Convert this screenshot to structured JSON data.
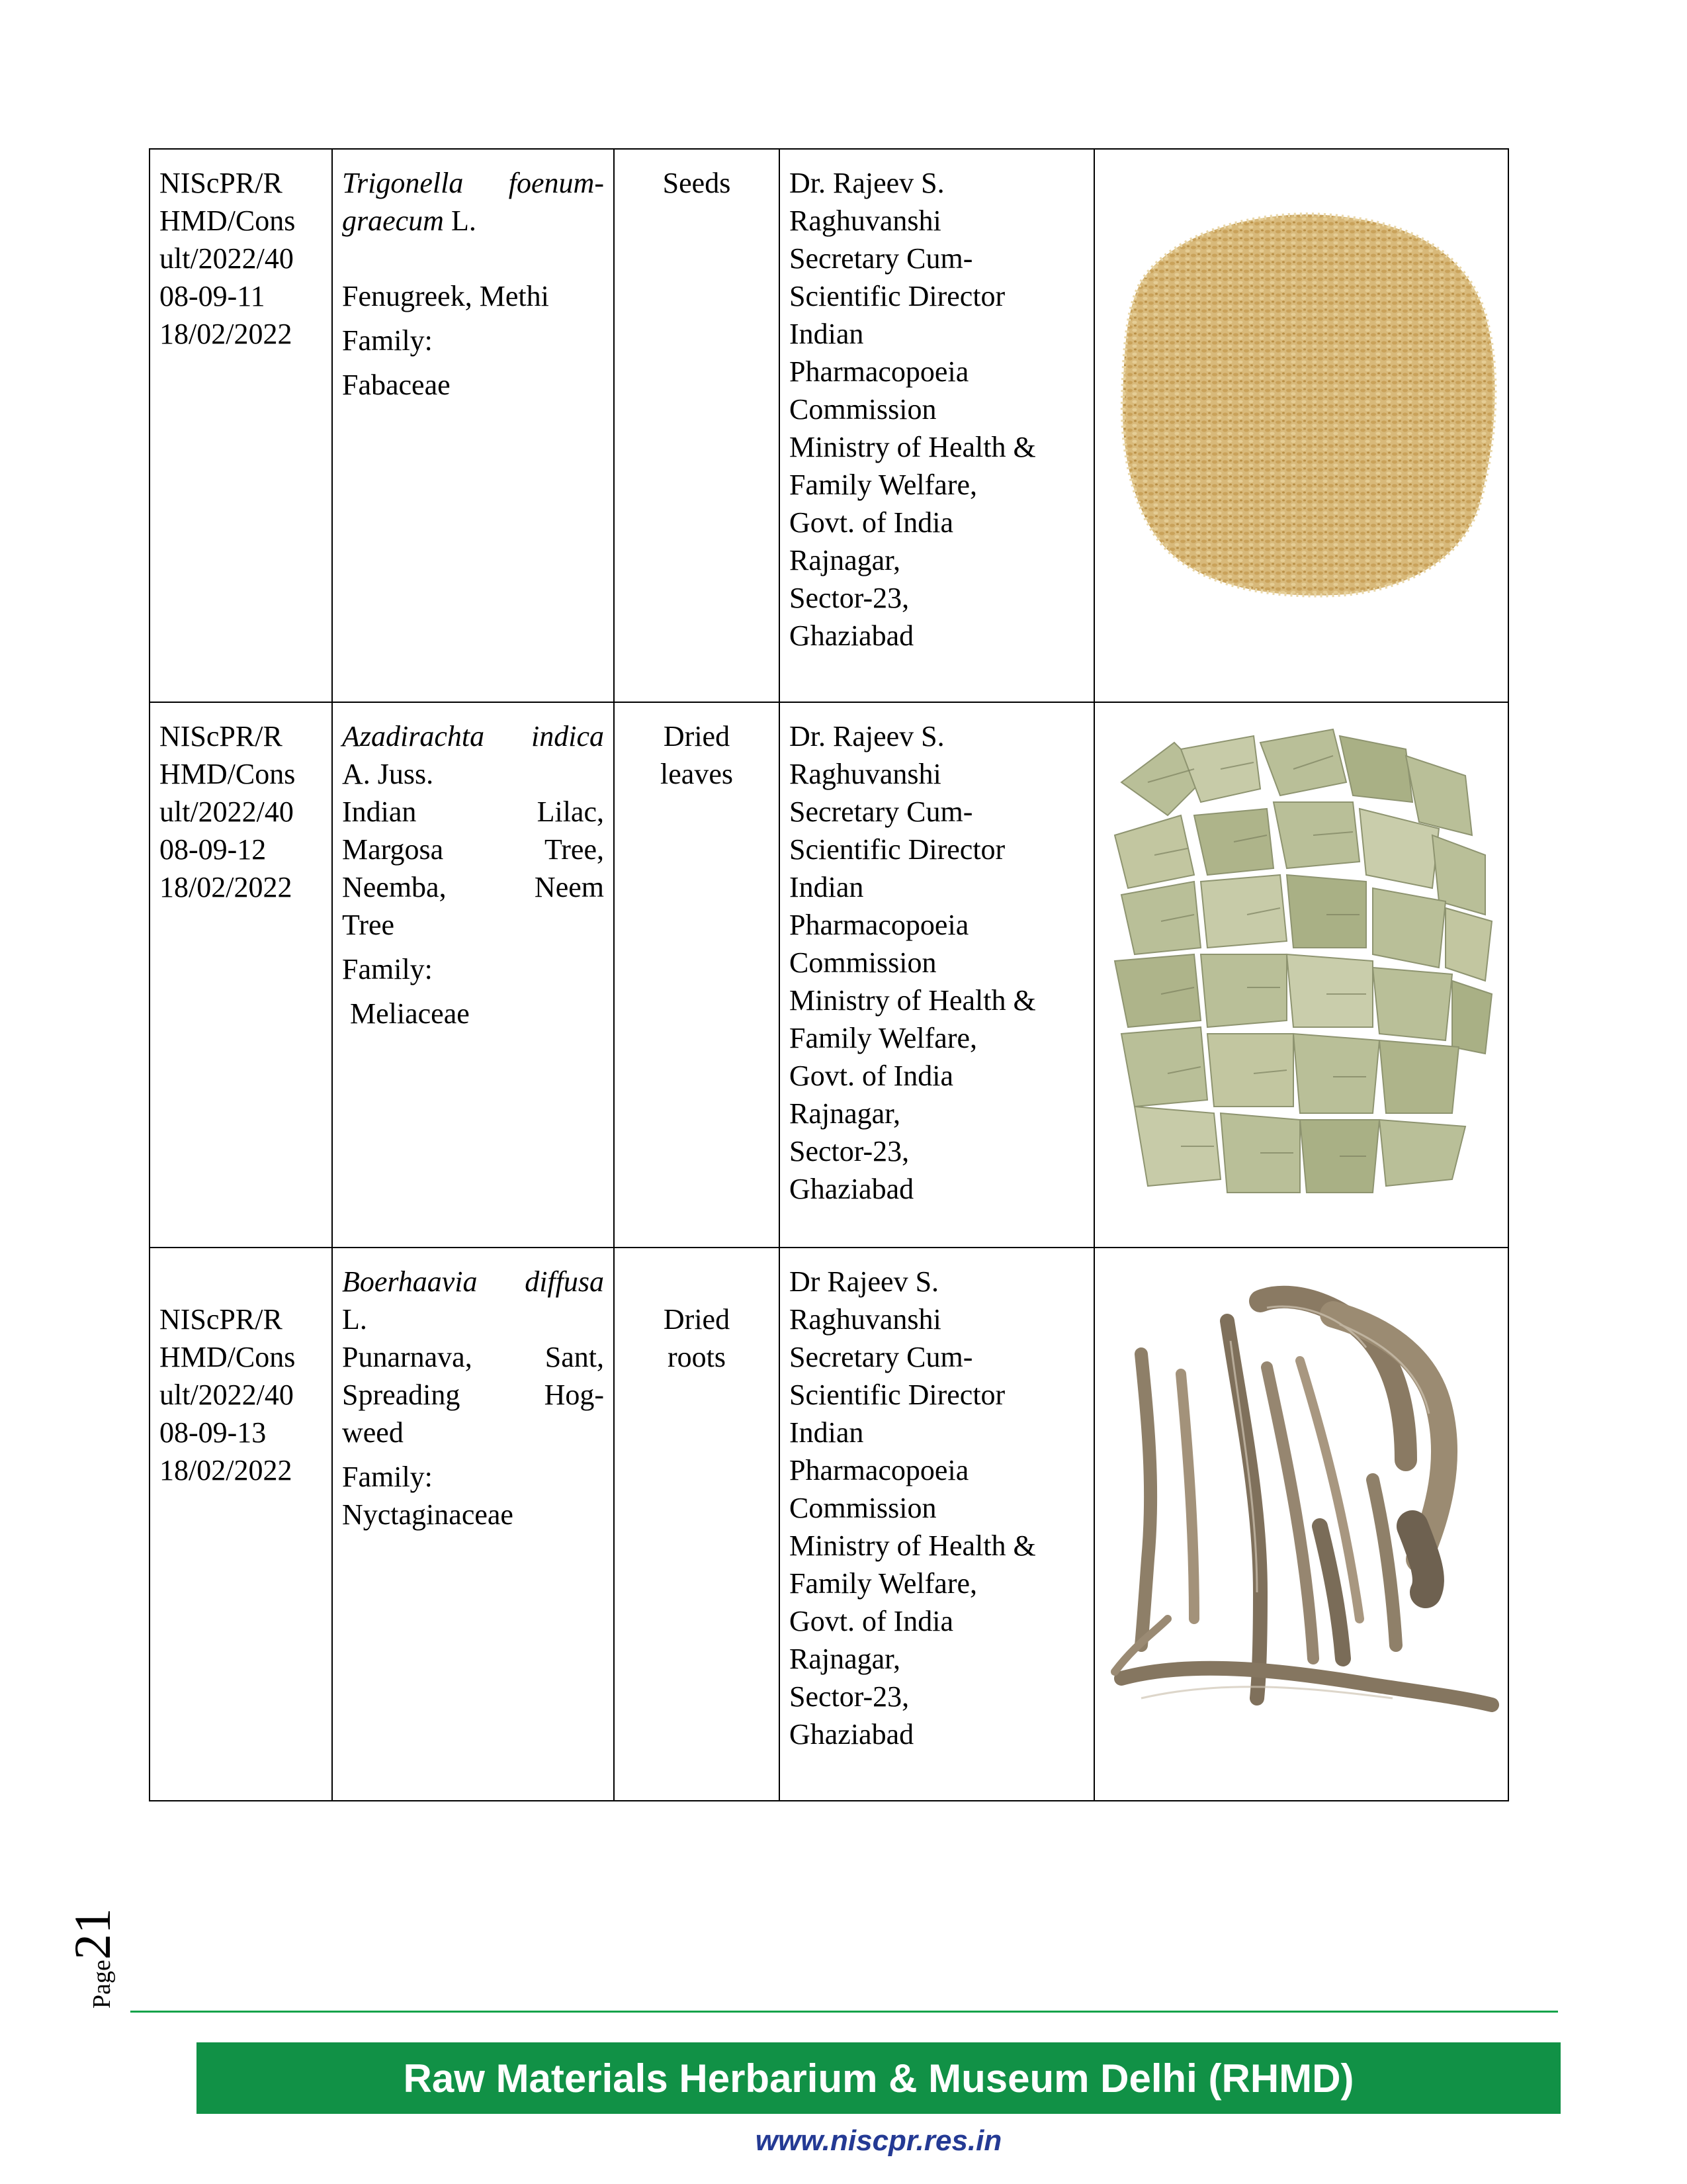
{
  "rows": [
    {
      "id_lines": [
        "NIScPR/R",
        "HMD/Cons",
        "ult/2022/40",
        "08-09-11",
        "18/02/2022"
      ],
      "botanical_italic": "Trigonella foenum-",
      "botanical_italic2": "graecum",
      "botanical_author": "L.",
      "common_name": "Fenugreek, Methi",
      "family_label": "Family:",
      "family": "Fabaceae",
      "part": [
        "Seeds"
      ],
      "source_lines": [
        "Dr. Rajeev S.",
        "Raghuvanshi",
        "Secretary Cum-",
        "Scientific Director",
        "Indian",
        "Pharmacopoeia",
        "Commission",
        "Ministry of Health &",
        "Family Welfare,",
        "Govt. of India",
        "Rajnagar,",
        "Sector-23,",
        "Ghaziabad"
      ],
      "image_icon": "fenugreek-seeds-image"
    },
    {
      "id_lines": [
        "NIScPR/R",
        "HMD/Cons",
        "ult/2022/40",
        "08-09-12",
        "18/02/2022"
      ],
      "botanical_italic": "Azadirachta indica",
      "botanical_author": "A. Juss.",
      "common_lines": [
        "Indian Lilac,",
        "Margosa Tree,",
        "Neemba, Neem",
        "Tree"
      ],
      "family_label": "Family:",
      "family": "Meliaceae",
      "part": [
        "Dried",
        "leaves"
      ],
      "source_lines": [
        "Dr. Rajeev S.",
        "Raghuvanshi",
        "Secretary Cum-",
        "Scientific Director",
        "Indian",
        "Pharmacopoeia",
        "Commission",
        "Ministry of Health &",
        "Family Welfare,",
        "Govt. of India",
        "Rajnagar,",
        "Sector-23,",
        "Ghaziabad"
      ],
      "image_icon": "neem-leaves-image"
    },
    {
      "id_lines": [
        "NIScPR/R",
        "HMD/Cons",
        "ult/2022/40",
        "08-09-13",
        "18/02/2022"
      ],
      "botanical_italic": "Boerhaavia diffusa",
      "botanical_author": "L.",
      "common_lines": [
        "Punarnava, Sant,",
        "Spreading Hog-",
        "weed"
      ],
      "family_label": "Family:",
      "family": "Nyctaginaceae",
      "part": [
        "Dried",
        "roots"
      ],
      "source_lines": [
        "Dr Rajeev S.",
        "Raghuvanshi",
        "Secretary Cum-",
        "Scientific Director",
        "Indian",
        "Pharmacopoeia",
        "Commission",
        "Ministry of Health &",
        "Family Welfare,",
        "Govt. of India",
        "Rajnagar,",
        "Sector-23,",
        "Ghaziabad"
      ],
      "image_icon": "punarnava-roots-image"
    }
  ],
  "page": {
    "label": "Page",
    "number": "21"
  },
  "footer": {
    "title": "Raw Materials Herbarium & Museum Delhi (RHMD)",
    "url": "www.niscpr.res.in"
  },
  "colors": {
    "footer_green": "#119146",
    "rule_green": "#12a34a",
    "url_blue": "#243a94"
  }
}
